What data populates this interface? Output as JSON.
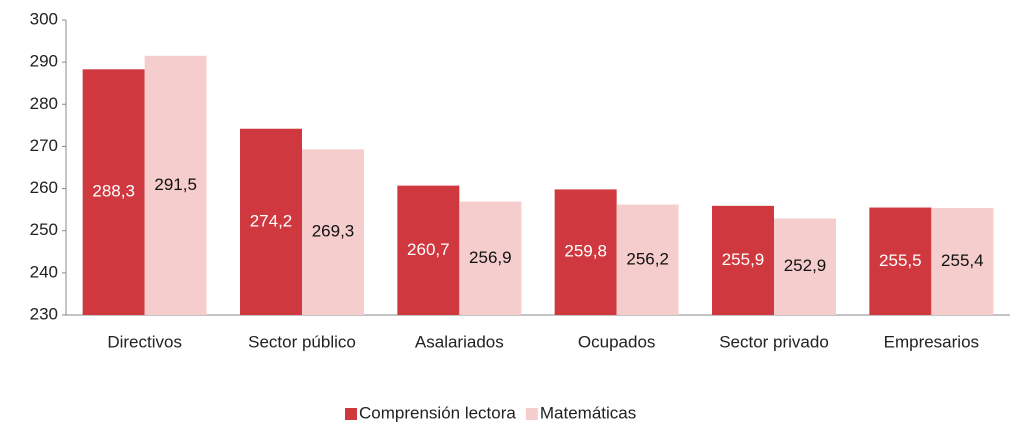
{
  "chart_data": {
    "type": "bar",
    "categories": [
      "Directivos",
      "Sector público",
      "Asalariados",
      "Ocupados",
      "Sector privado",
      "Empresarios"
    ],
    "series": [
      {
        "name": "Comprensión lectora",
        "color": "#d0383f",
        "label_color": "#ffffff",
        "values": [
          288.3,
          274.2,
          260.7,
          259.8,
          255.9,
          255.5
        ],
        "value_labels": [
          "288,3",
          "274,2",
          "260,7",
          "259,8",
          "255,9",
          "255,5"
        ]
      },
      {
        "name": "Matemáticas",
        "color": "#f5cdcd",
        "label_color": "#111111",
        "values": [
          291.5,
          269.3,
          256.9,
          256.2,
          252.9,
          255.4
        ],
        "value_labels": [
          "291,5",
          "269,3",
          "256,9",
          "256,2",
          "252,9",
          "255,4"
        ]
      }
    ],
    "ylim": [
      230,
      300
    ],
    "yticks": [
      230,
      240,
      250,
      260,
      270,
      280,
      290,
      300
    ],
    "grid": false,
    "legend": "bottom"
  }
}
